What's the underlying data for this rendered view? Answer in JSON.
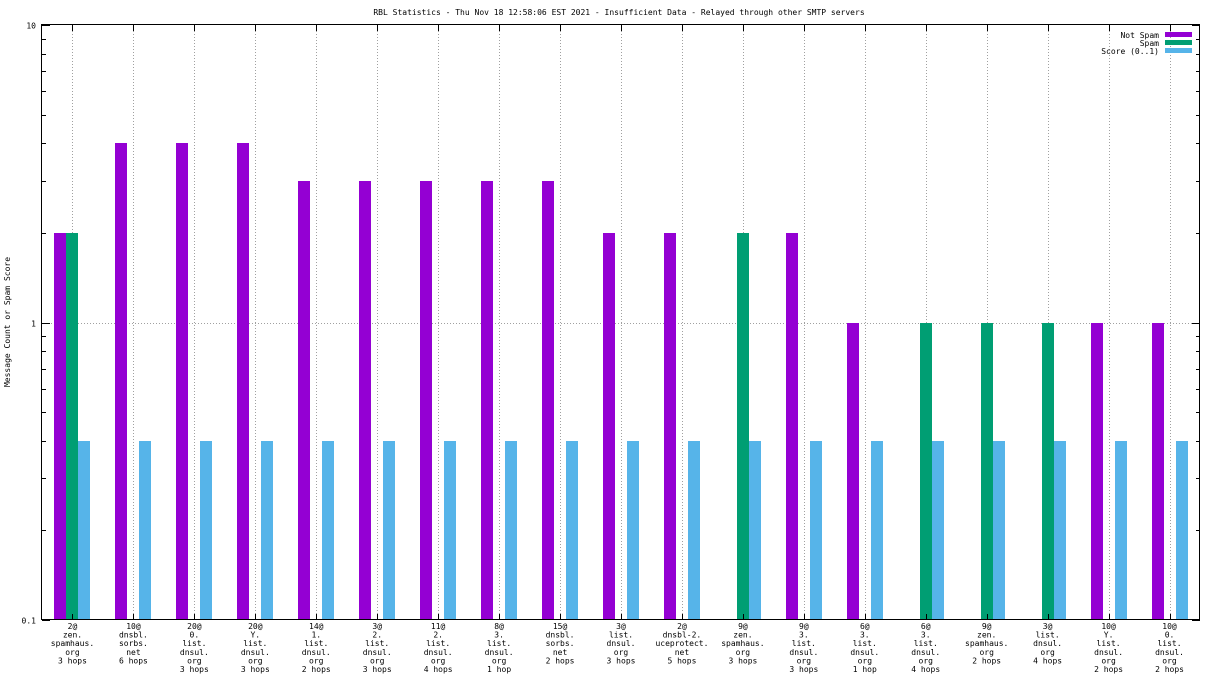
{
  "chart_data": {
    "type": "bar",
    "title": "RBL Statistics - Thu Nov 18 12:58:06 EST 2021 - Insufficient Data - Relayed through other SMTP servers",
    "ylabel": "Message Count or Spam Score",
    "xlabel": "",
    "yscale": "log",
    "ylim": [
      0.1,
      10
    ],
    "ytick_labels": [
      "10",
      "1",
      "0.1"
    ],
    "ytick_values": [
      10,
      1,
      0.1
    ],
    "grid": true,
    "legend_position": "top-right",
    "categories": [
      [
        "2@",
        "zen.",
        "spamhaus.",
        "org",
        "3 hops"
      ],
      [
        "10@",
        "dnsbl.",
        "sorbs.",
        "net",
        "6 hops"
      ],
      [
        "20@",
        "0.",
        "list.",
        "dnsul.",
        "org",
        "3 hops"
      ],
      [
        "20@",
        "Y.",
        "list.",
        "dnsul.",
        "org",
        "3 hops"
      ],
      [
        "14@",
        "1.",
        "list.",
        "dnsul.",
        "org",
        "2 hops"
      ],
      [
        "3@",
        "2.",
        "list.",
        "dnsul.",
        "org",
        "3 hops"
      ],
      [
        "11@",
        "2.",
        "list.",
        "dnsul.",
        "org",
        "4 hops"
      ],
      [
        "8@",
        "3.",
        "list.",
        "dnsul.",
        "org",
        "1 hop"
      ],
      [
        "15@",
        "dnsbl.",
        "sorbs.",
        "net",
        "2 hops"
      ],
      [
        "3@",
        "list.",
        "dnsul.",
        "org",
        "3 hops"
      ],
      [
        "2@",
        "dnsbl-2.",
        "uceprotect.",
        "net",
        "5 hops"
      ],
      [
        "9@",
        "zen.",
        "spamhaus.",
        "org",
        "3 hops"
      ],
      [
        "9@",
        "3.",
        "list.",
        "dnsul.",
        "org",
        "3 hops"
      ],
      [
        "6@",
        "3.",
        "list.",
        "dnsul.",
        "org",
        "1 hop"
      ],
      [
        "6@",
        "3.",
        "list.",
        "dnsul.",
        "org",
        "4 hops"
      ],
      [
        "9@",
        "zen.",
        "spamhaus.",
        "org",
        "2 hops"
      ],
      [
        "3@",
        "list.",
        "dnsul.",
        "org",
        "4 hops"
      ],
      [
        "10@",
        "Y.",
        "list.",
        "dnsul.",
        "org",
        "2 hops"
      ],
      [
        "10@",
        "0.",
        "list.",
        "dnsul.",
        "org",
        "2 hops"
      ]
    ],
    "series": [
      {
        "name": "Not Spam",
        "color": "#9400d3",
        "values": [
          2,
          4,
          4,
          4,
          3,
          3,
          3,
          3,
          3,
          2,
          2,
          null,
          2,
          1,
          null,
          null,
          null,
          1,
          1
        ]
      },
      {
        "name": "Spam",
        "color": "#009e73",
        "values": [
          2,
          null,
          null,
          null,
          null,
          null,
          null,
          null,
          null,
          null,
          null,
          2,
          null,
          null,
          1,
          1,
          1,
          null,
          null
        ]
      },
      {
        "name": "Score (0..1)",
        "color": "#56b4e9",
        "values": [
          0.4,
          0.4,
          0.4,
          0.4,
          0.4,
          0.4,
          0.4,
          0.4,
          0.4,
          0.4,
          0.4,
          0.4,
          0.4,
          0.4,
          0.4,
          0.4,
          0.4,
          0.4,
          0.4
        ]
      }
    ]
  }
}
